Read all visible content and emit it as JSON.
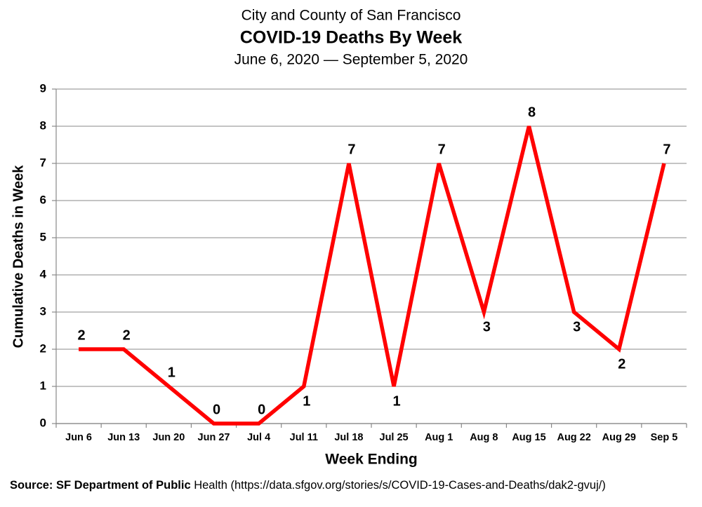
{
  "chart_data": {
    "type": "line",
    "supertitle": "City and County of San Francisco",
    "title": "COVID-19 Deaths By Week",
    "subtitle": "June 6, 2020 — September 5, 2020",
    "x_label": "Week Ending",
    "y_label": "Cumulative Deaths in Week",
    "source": {
      "label": "Source: SF Department of Public",
      "text": "Health (https://data.sfgov.org/stories/s/COVID-19-Cases-and-Deaths/dak2-gvuj/)"
    },
    "categories": [
      "Jun 6",
      "Jun 13",
      "Jun 20",
      "Jun 27",
      "Jul 4",
      "Jul 11",
      "Jul 18",
      "Jul 25",
      "Aug 1",
      "Aug 8",
      "Aug 15",
      "Aug 22",
      "Aug 29",
      "Sep 5"
    ],
    "values": [
      2,
      2,
      1,
      0,
      0,
      1,
      7,
      1,
      7,
      3,
      8,
      3,
      2,
      7
    ],
    "color": "#ff0000",
    "ylim": [
      0,
      9
    ],
    "yticks": [
      0,
      1,
      2,
      3,
      4,
      5,
      6,
      7,
      8,
      9
    ],
    "grid": true
  }
}
